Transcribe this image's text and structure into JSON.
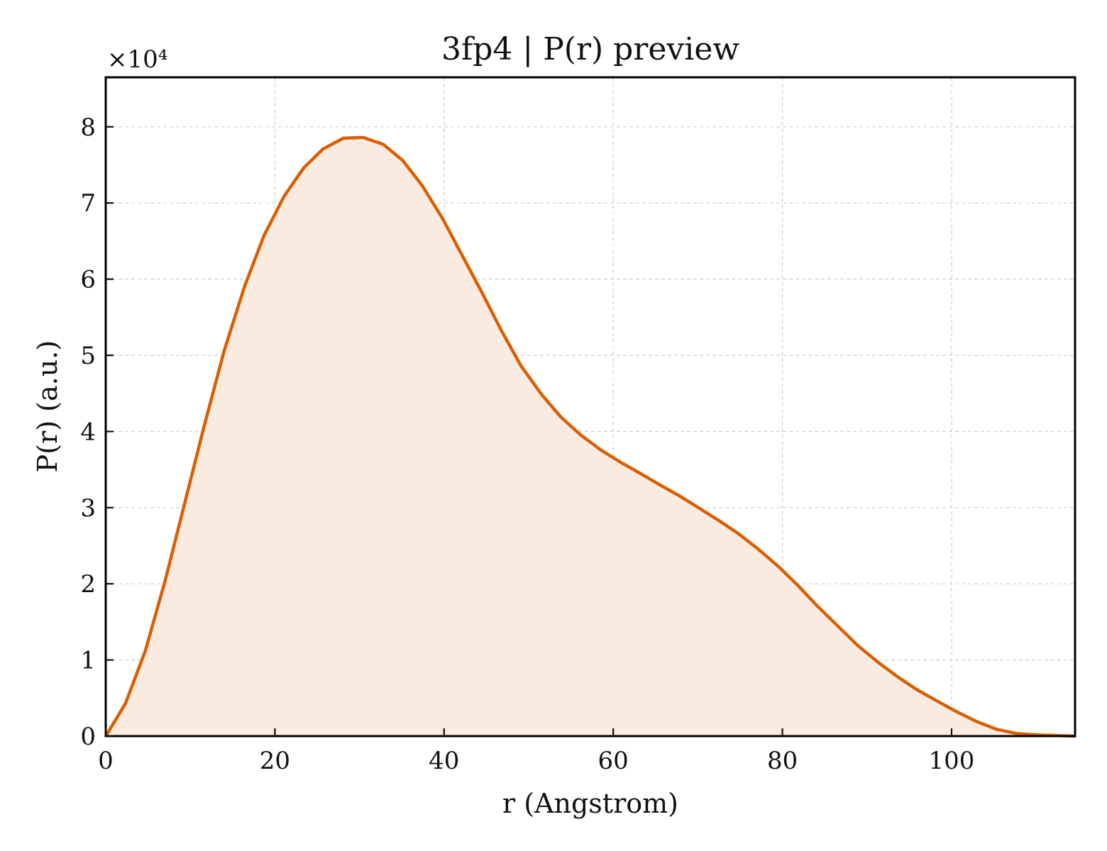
{
  "chart_data": {
    "type": "area",
    "title": "3fp4 | P(r) preview",
    "xlabel": "r (Angstrom)",
    "ylabel": "P(r) (a.u.)",
    "y_multiplier_label": "×10⁴",
    "xlim": [
      0,
      114.6
    ],
    "ylim": [
      0,
      86500
    ],
    "grid": true,
    "xticks": [
      0,
      20,
      40,
      60,
      80,
      100
    ],
    "yticks": [
      0,
      10000,
      20000,
      30000,
      40000,
      50000,
      60000,
      70000,
      80000
    ],
    "ytick_labels": [
      "0",
      "1",
      "2",
      "3",
      "4",
      "5",
      "6",
      "7",
      "8"
    ],
    "colors": {
      "line": "#d95f02",
      "fill": "#f9ebe0"
    },
    "series": [
      {
        "x": [
          0,
          2.34,
          4.68,
          7.02,
          9.36,
          11.7,
          14.0,
          16.4,
          18.7,
          21.1,
          23.4,
          25.7,
          28.1,
          30.4,
          32.8,
          35.1,
          37.4,
          39.8,
          42.1,
          44.5,
          46.8,
          49.1,
          51.5,
          53.8,
          56.2,
          58.5,
          60.8,
          63.2,
          65.5,
          67.9,
          70.2,
          72.5,
          74.9,
          77.2,
          79.6,
          81.9,
          84.2,
          86.6,
          88.9,
          91.3,
          93.6,
          95.9,
          98.3,
          100.6,
          103.0,
          105.3,
          107.6,
          110.0,
          112.3,
          114.6
        ],
        "values": [
          0,
          4300,
          11200,
          20400,
          30700,
          41000,
          50600,
          59000,
          65700,
          70900,
          74600,
          77100,
          78500,
          78600,
          77700,
          75600,
          72300,
          68000,
          63200,
          58200,
          53200,
          48600,
          44900,
          41900,
          39500,
          37600,
          36000,
          34500,
          33000,
          31500,
          29900,
          28300,
          26500,
          24500,
          22200,
          19700,
          17000,
          14400,
          11900,
          9700,
          7800,
          6100,
          4600,
          3200,
          1900,
          900,
          350,
          160,
          80,
          0
        ]
      }
    ]
  }
}
